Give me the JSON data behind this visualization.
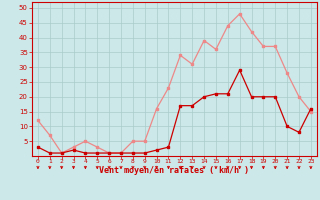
{
  "x": [
    0,
    1,
    2,
    3,
    4,
    5,
    6,
    7,
    8,
    9,
    10,
    11,
    12,
    13,
    14,
    15,
    16,
    17,
    18,
    19,
    20,
    21,
    22,
    23
  ],
  "wind_avg": [
    3,
    1,
    1,
    2,
    1,
    1,
    1,
    1,
    1,
    1,
    2,
    3,
    17,
    17,
    20,
    21,
    21,
    29,
    20,
    20,
    20,
    10,
    8,
    16
  ],
  "wind_gust": [
    12,
    7,
    1,
    3,
    5,
    3,
    1,
    1,
    5,
    5,
    16,
    23,
    34,
    31,
    39,
    36,
    44,
    48,
    42,
    37,
    37,
    28,
    20,
    15
  ],
  "ylim": [
    0,
    52
  ],
  "yticks": [
    5,
    10,
    15,
    20,
    25,
    30,
    35,
    40,
    45,
    50
  ],
  "xlabel": "Vent moyen/en rafales ( km/h )",
  "bg_color": "#cce8e8",
  "grid_color": "#aacccc",
  "line_avg_color": "#cc0000",
  "line_gust_color": "#ee8888",
  "marker_avg": "s",
  "marker_gust": "D",
  "marker_size": 2.0,
  "line_width": 0.9
}
